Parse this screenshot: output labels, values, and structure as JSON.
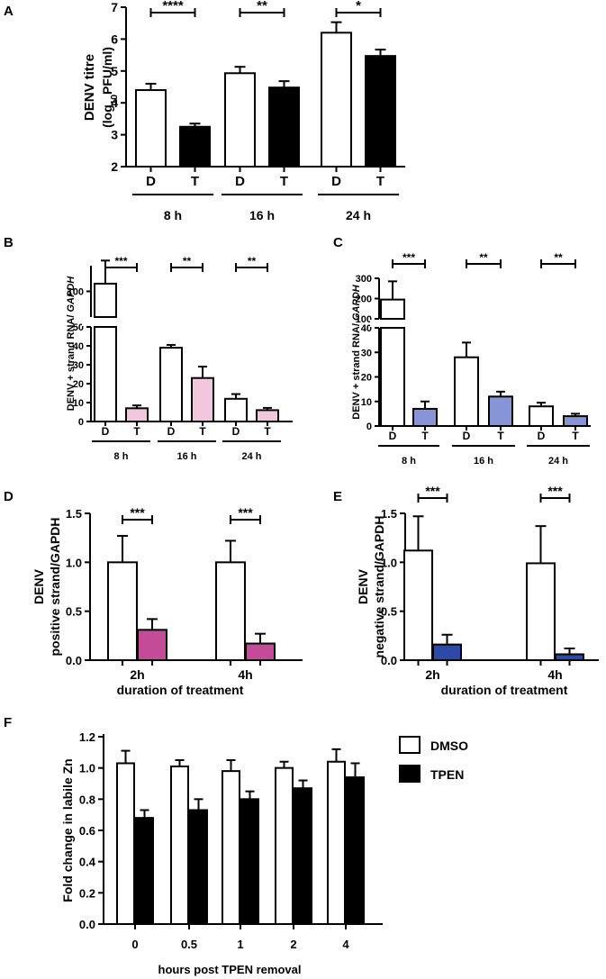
{
  "chart_data": [
    {
      "id": "A",
      "type": "bar",
      "panel_label": "A",
      "ylabel_lines": [
        "DENV titre",
        "(log10PFU/ml)"
      ],
      "ylabel_rich": [
        {
          "t": "(log"
        },
        {
          "t": "10",
          "sub": true
        },
        {
          "t": "PFU/ml)"
        }
      ],
      "ylim": [
        2,
        7
      ],
      "yticks": [
        2,
        3,
        4,
        5,
        6,
        7
      ],
      "categories": [
        "D",
        "T",
        "D",
        "T",
        "D",
        "T"
      ],
      "groups": [
        "8 h",
        "16 h",
        "24 h"
      ],
      "values": [
        4.4,
        3.25,
        4.93,
        4.48,
        6.2,
        5.47
      ],
      "errors": [
        0.2,
        0.1,
        0.2,
        0.2,
        0.33,
        0.2
      ],
      "significance": [
        "****",
        "**",
        "*"
      ],
      "colors": [
        "#ffffff",
        "#000000",
        "#ffffff",
        "#000000",
        "#ffffff",
        "#000000"
      ]
    },
    {
      "id": "B",
      "type": "bar",
      "panel_label": "B",
      "ylabel": "DENV + strand RNA/ GAPDH",
      "ylabel_rich": [
        {
          "t": "DENV + strand RNA/ "
        },
        {
          "t": "GAPDH",
          "italic": true
        }
      ],
      "axis_break": true,
      "lower_range": [
        0,
        50
      ],
      "lower_ticks": [
        0,
        10,
        20,
        30,
        40,
        50
      ],
      "upper_range": [
        50,
        150
      ],
      "upper_ticks": [
        100
      ],
      "categories": [
        "D",
        "T",
        "D",
        "T",
        "D",
        "T"
      ],
      "groups": [
        "8 h",
        "16 h",
        "24 h"
      ],
      "values": [
        115,
        7,
        39,
        23,
        12,
        6
      ],
      "errors": [
        45,
        1.5,
        1.5,
        6,
        2.5,
        1.2
      ],
      "significance": [
        "***",
        "**",
        "**"
      ],
      "colors": [
        "#ffffff",
        "#f2c6dc",
        "#ffffff",
        "#f2c6dc",
        "#ffffff",
        "#f2c6dc"
      ]
    },
    {
      "id": "C",
      "type": "bar",
      "panel_label": "C",
      "ylabel": "DENV + strand RNA/ GAPDH",
      "ylabel_rich": [
        {
          "t": "DENV + strand RNA/ "
        },
        {
          "t": "GAPDH",
          "italic": true
        }
      ],
      "axis_break": true,
      "lower_range": [
        0,
        40
      ],
      "lower_ticks": [
        0,
        10,
        20,
        30,
        40
      ],
      "upper_range": [
        100,
        300
      ],
      "upper_ticks": [
        100,
        200,
        300
      ],
      "categories": [
        "D",
        "T",
        "D",
        "T",
        "D",
        "T"
      ],
      "groups": [
        "8 h",
        "16 h",
        "24 h"
      ],
      "values": [
        195,
        7,
        28,
        12,
        8,
        4
      ],
      "errors": [
        90,
        3,
        6,
        2,
        1.5,
        1
      ],
      "significance": [
        "***",
        "**",
        "**"
      ],
      "colors": [
        "#ffffff",
        "#8795d8",
        "#ffffff",
        "#8795d8",
        "#ffffff",
        "#8795d8"
      ]
    },
    {
      "id": "D",
      "type": "bar",
      "panel_label": "D",
      "ylabel_lines": [
        "DENV",
        "positive strand/GAPDH"
      ],
      "xlabel": "duration of treatment",
      "ylim": [
        0,
        1.5
      ],
      "yticks": [
        0.0,
        0.5,
        1.0,
        1.5
      ],
      "ytick_labels": [
        "0.0",
        "0.5",
        "1.0",
        "1.5"
      ],
      "groups": [
        "2h",
        "4h"
      ],
      "values": [
        1.0,
        0.31,
        1.0,
        0.17
      ],
      "errors": [
        0.27,
        0.11,
        0.22,
        0.1
      ],
      "significance": [
        "***",
        "***"
      ],
      "colors": [
        "#ffffff",
        "#c44b98",
        "#ffffff",
        "#c44b98"
      ]
    },
    {
      "id": "E",
      "type": "bar",
      "panel_label": "E",
      "ylabel_lines": [
        "DENV",
        "negative strand/GAPDH"
      ],
      "xlabel": "duration of treatment",
      "ylim": [
        0,
        1.5
      ],
      "yticks": [
        0.0,
        0.5,
        1.0,
        1.5
      ],
      "ytick_labels": [
        "0.0",
        "0.5",
        "1.0",
        "1.5"
      ],
      "groups": [
        "2h",
        "4h"
      ],
      "values": [
        1.12,
        0.16,
        0.99,
        0.06
      ],
      "errors": [
        0.35,
        0.1,
        0.38,
        0.06
      ],
      "significance": [
        "***",
        "***"
      ],
      "colors": [
        "#ffffff",
        "#2e4aa8",
        "#ffffff",
        "#2e4aa8"
      ]
    },
    {
      "id": "F",
      "type": "bar",
      "panel_label": "F",
      "ylabel": "Fold change in labile Zn",
      "xlabel": "hours post TPEN removal",
      "ylim": [
        0,
        1.2
      ],
      "yticks": [
        0.0,
        0.2,
        0.4,
        0.6,
        0.8,
        1.0,
        1.2
      ],
      "ytick_labels": [
        "0.0",
        "0.2",
        "0.4",
        "0.6",
        "0.8",
        "1.0",
        "1.2"
      ],
      "categories": [
        "0",
        "0.5",
        "1",
        "2",
        "4"
      ],
      "series": [
        {
          "name": "DMSO",
          "color": "#ffffff",
          "values": [
            1.03,
            1.01,
            0.98,
            1.0,
            1.04
          ],
          "errors": [
            0.08,
            0.04,
            0.07,
            0.04,
            0.08
          ]
        },
        {
          "name": "TPEN",
          "color": "#000000",
          "values": [
            0.68,
            0.73,
            0.8,
            0.87,
            0.94
          ],
          "errors": [
            0.05,
            0.07,
            0.05,
            0.05,
            0.09
          ]
        }
      ],
      "legend": [
        "DMSO",
        "TPEN"
      ]
    }
  ]
}
